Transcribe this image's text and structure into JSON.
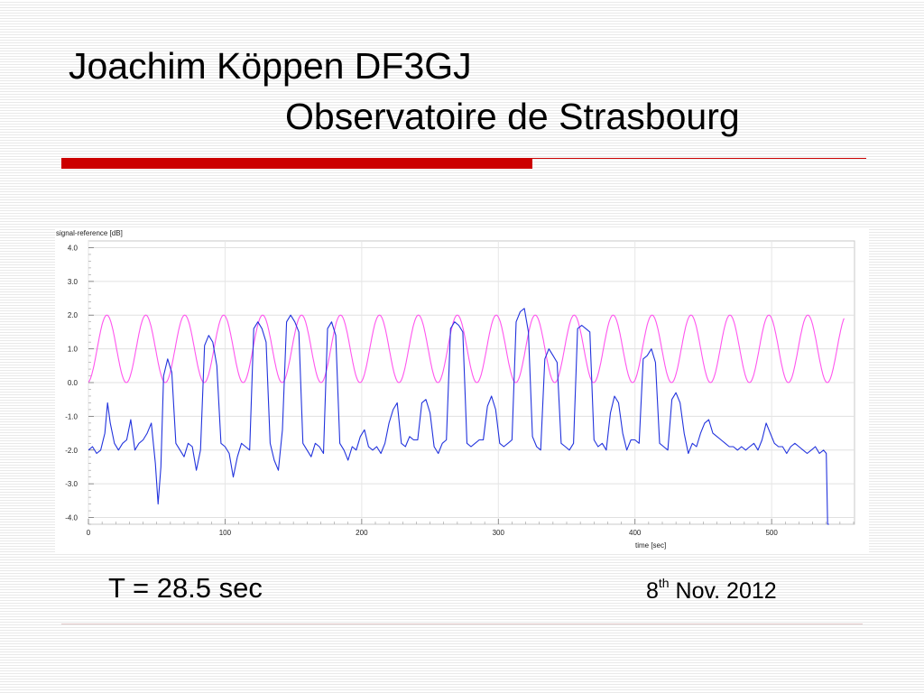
{
  "slide": {
    "title_line1": "Joachim Köppen DF3GJ",
    "title_line2": "Observatoire de Strasbourg",
    "period_text": "T = 28.5 sec",
    "date_day": "8",
    "date_suffix": "th",
    "date_rest": " Nov. 2012",
    "accent_color": "#cc0000"
  },
  "chart_data": {
    "type": "line",
    "title": "",
    "xlabel": "time [sec]",
    "ylabel": "signal-reference [dB]",
    "xlim": [
      0,
      560
    ],
    "ylim": [
      -4.2,
      4.2
    ],
    "x_ticks": [
      0,
      100,
      200,
      300,
      400,
      500
    ],
    "x_tick_labels": [
      "0",
      "100",
      "200",
      "300",
      "400",
      "500"
    ],
    "y_ticks": [
      4.0,
      3.0,
      2.0,
      1.0,
      0.0,
      -1.0,
      -2.0,
      -3.0,
      -4.0
    ],
    "y_tick_labels": [
      "4.0",
      "3.0",
      "2.0",
      "1.0",
      "0.0",
      "-1.0",
      "-2.0",
      "-3.0",
      "-4.0"
    ],
    "grid": true,
    "series": [
      {
        "color": "#ff55ee",
        "kind": "sine",
        "period": 28.5,
        "mean": 1.0,
        "amplitude": 1.0,
        "x_start": 0,
        "x_end": 553,
        "peak_at": 13.5
      },
      {
        "color": "#2233dd",
        "x": [
          0,
          3,
          6,
          9,
          12,
          14,
          16,
          19,
          22,
          25,
          28,
          31,
          34,
          37,
          40,
          43,
          46,
          49,
          51,
          53,
          55,
          58,
          61,
          64,
          67,
          70,
          73,
          76,
          79,
          82,
          85,
          88,
          91,
          94,
          97,
          100,
          103,
          106,
          109,
          112,
          115,
          118,
          121,
          124,
          127,
          130,
          133,
          136,
          139,
          142,
          145,
          148,
          151,
          154,
          157,
          160,
          163,
          166,
          169,
          172,
          175,
          178,
          181,
          184,
          187,
          190,
          193,
          196,
          199,
          202,
          205,
          208,
          211,
          214,
          217,
          220,
          223,
          226,
          229,
          232,
          235,
          238,
          241,
          244,
          247,
          250,
          253,
          256,
          259,
          262,
          265,
          268,
          271,
          274,
          277,
          280,
          283,
          286,
          289,
          292,
          295,
          298,
          301,
          304,
          307,
          310,
          313,
          316,
          319,
          322,
          325,
          328,
          331,
          334,
          337,
          340,
          343,
          346,
          349,
          352,
          355,
          358,
          361,
          364,
          367,
          370,
          373,
          376,
          379,
          382,
          385,
          388,
          391,
          394,
          397,
          400,
          403,
          406,
          409,
          412,
          415,
          418,
          421,
          424,
          427,
          430,
          433,
          436,
          439,
          442,
          445,
          448,
          451,
          454,
          457,
          460,
          463,
          466,
          469,
          472,
          475,
          478,
          481,
          484,
          487,
          490,
          493,
          496,
          499,
          502,
          505,
          508,
          511,
          514,
          517,
          520,
          523,
          526,
          529,
          532,
          535,
          538,
          540,
          541,
          542
        ],
        "y": [
          -2.0,
          -1.9,
          -2.1,
          -2.0,
          -1.5,
          -0.6,
          -1.2,
          -1.8,
          -2.0,
          -1.8,
          -1.7,
          -1.1,
          -2.0,
          -1.8,
          -1.7,
          -1.5,
          -1.2,
          -2.4,
          -3.6,
          -2.5,
          0.2,
          0.7,
          0.3,
          -1.8,
          -2.0,
          -2.2,
          -1.8,
          -1.9,
          -2.6,
          -2.0,
          1.1,
          1.4,
          1.2,
          0.5,
          -1.8,
          -1.9,
          -2.1,
          -2.8,
          -2.2,
          -1.8,
          -1.9,
          -2.0,
          1.6,
          1.8,
          1.6,
          1.2,
          -1.8,
          -2.3,
          -2.6,
          -1.4,
          1.8,
          2.0,
          1.8,
          1.5,
          -1.8,
          -2.0,
          -2.2,
          -1.8,
          -1.9,
          -2.1,
          1.6,
          1.8,
          1.4,
          -1.8,
          -2.0,
          -2.3,
          -1.9,
          -2.0,
          -1.6,
          -1.4,
          -1.9,
          -2.0,
          -1.9,
          -2.1,
          -1.8,
          -1.2,
          -0.8,
          -0.6,
          -1.8,
          -1.9,
          -1.6,
          -1.7,
          -1.7,
          -0.6,
          -0.5,
          -0.9,
          -1.9,
          -2.1,
          -1.8,
          -1.7,
          1.6,
          1.8,
          1.7,
          1.5,
          -1.8,
          -1.9,
          -1.8,
          -1.7,
          -1.7,
          -0.7,
          -0.4,
          -0.8,
          -1.8,
          -1.9,
          -1.8,
          -1.7,
          1.8,
          2.1,
          2.2,
          1.5,
          -1.6,
          -1.9,
          -2.0,
          0.7,
          1.0,
          0.8,
          0.6,
          -1.8,
          -1.9,
          -2.0,
          -1.8,
          1.6,
          1.7,
          1.6,
          1.5,
          -1.7,
          -1.9,
          -1.8,
          -2.0,
          -0.9,
          -0.4,
          -0.6,
          -1.5,
          -2.0,
          -1.7,
          -1.7,
          -1.8,
          0.7,
          0.8,
          1.0,
          0.6,
          -1.8,
          -1.9,
          -2.0,
          -0.5,
          -0.3,
          -0.6,
          -1.5,
          -2.1,
          -1.8,
          -1.9,
          -1.5,
          -1.2,
          -1.1,
          -1.5,
          -1.6,
          -1.7,
          -1.8,
          -1.9,
          -1.9,
          -2.0,
          -1.9,
          -2.0,
          -1.9,
          -1.8,
          -2.0,
          -1.7,
          -1.2,
          -1.5,
          -1.8,
          -1.9,
          -1.9,
          -2.1,
          -1.9,
          -1.8,
          -1.9,
          -2.0,
          -2.1,
          -2.0,
          -1.9,
          -2.1,
          -2.0,
          -2.1,
          -4.2,
          -4.2
        ]
      }
    ]
  }
}
